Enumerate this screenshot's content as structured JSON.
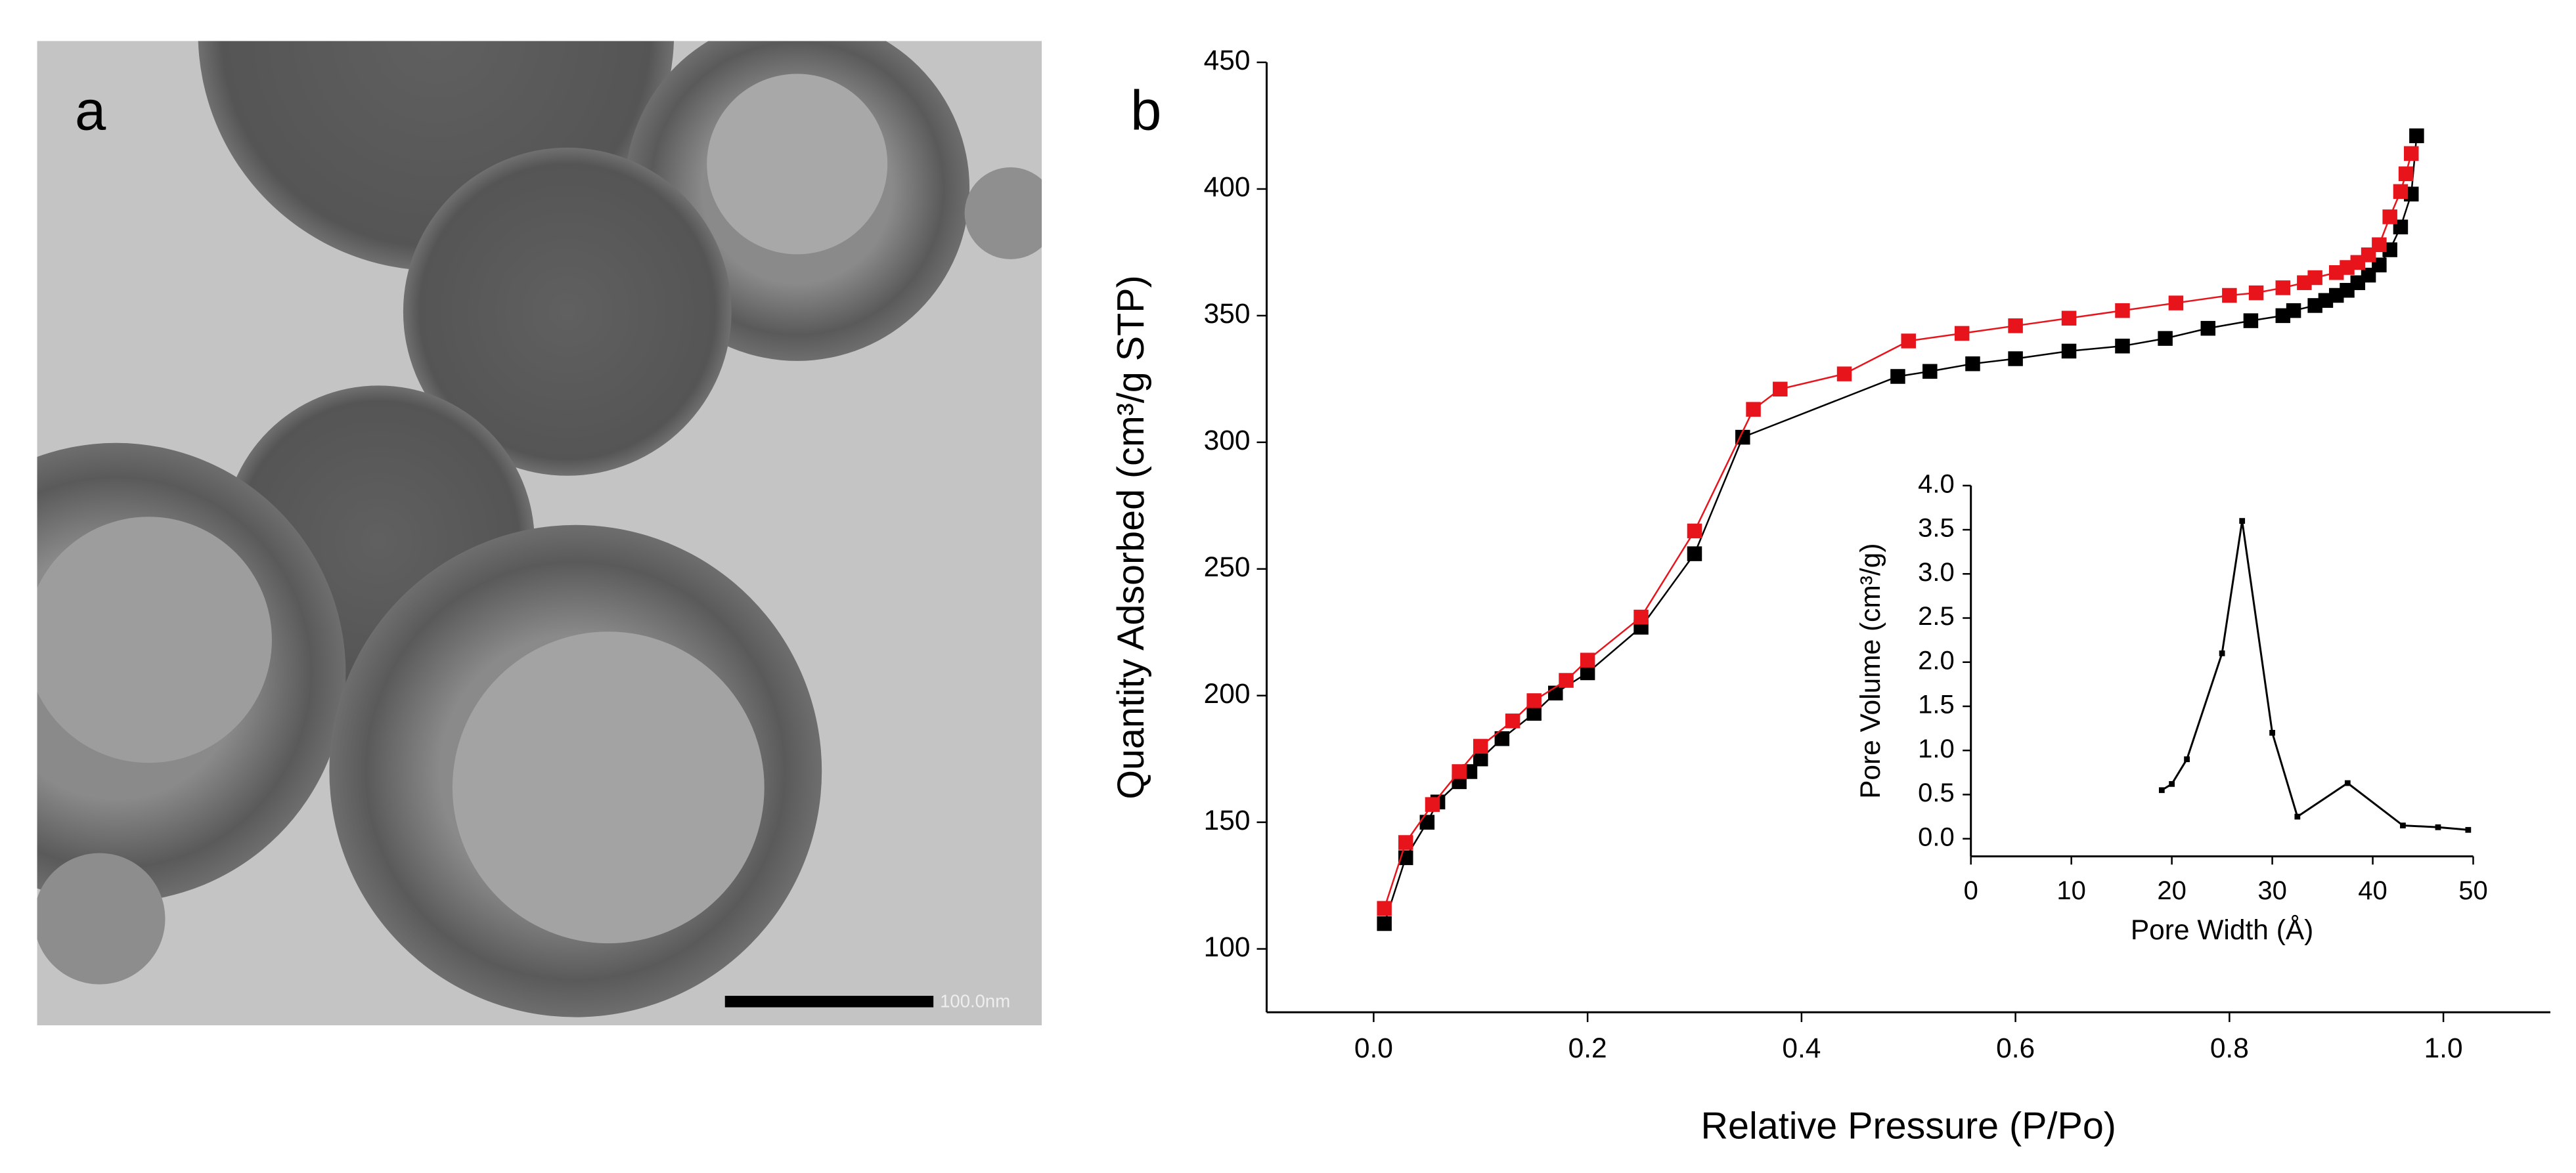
{
  "panel_a": {
    "label": "a",
    "scale_bar_label": "100.0nm"
  },
  "chart_data": [
    {
      "type": "line",
      "label": "b",
      "xlabel": "Relative Pressure (P/Po)",
      "ylabel": "Quantity Adsorbed (cm³/g STP)",
      "xlim": [
        -0.1,
        1.1
      ],
      "ylim": [
        75,
        450
      ],
      "xticks": [
        {
          "value": 0,
          "label": "0.0"
        },
        0.2,
        0.4,
        0.6,
        0.8,
        {
          "value": 1,
          "label": "1.0"
        }
      ],
      "yticks": [
        100,
        150,
        200,
        250,
        300,
        350,
        400,
        450
      ],
      "series": [
        {
          "color": "#000000",
          "x": [
            0.01,
            0.03,
            0.05,
            0.06,
            0.08,
            0.09,
            0.1,
            0.12,
            0.15,
            0.17,
            0.2,
            0.25,
            0.3,
            0.345,
            0.49,
            0.52,
            0.56,
            0.6,
            0.65,
            0.7,
            0.74,
            0.78,
            0.82,
            0.85,
            0.86,
            0.88,
            0.89,
            0.9,
            0.91,
            0.92,
            0.93,
            0.94,
            0.95,
            0.96,
            0.97,
            0.975
          ],
          "values": [
            110,
            136,
            150,
            158,
            166,
            170,
            175,
            183,
            193,
            201,
            209,
            227,
            256,
            302,
            326,
            328,
            331,
            333,
            336,
            338,
            341,
            345,
            348,
            350,
            352,
            354,
            356,
            358,
            360,
            363,
            366,
            370,
            376,
            385,
            398,
            421
          ]
        },
        {
          "color": "#e8141b",
          "x": [
            0.01,
            0.03,
            0.055,
            0.08,
            0.1,
            0.13,
            0.15,
            0.18,
            0.2,
            0.25,
            0.3,
            0.355,
            0.38,
            0.44,
            0.5,
            0.55,
            0.6,
            0.65,
            0.7,
            0.75,
            0.8,
            0.825,
            0.85,
            0.87,
            0.88,
            0.9,
            0.91,
            0.92,
            0.93,
            0.94,
            0.95,
            0.96,
            0.965,
            0.97
          ],
          "values": [
            116,
            142,
            157,
            170,
            180,
            190,
            198,
            206,
            214,
            231,
            265,
            313,
            321,
            327,
            340,
            343,
            346,
            349,
            352,
            355,
            358,
            359,
            361,
            363,
            365,
            367,
            369,
            371,
            374,
            378,
            389,
            399,
            406,
            414
          ]
        }
      ]
    },
    {
      "type": "line",
      "xlabel": "Pore Width (Å)",
      "ylabel": "Pore Volume (cm³/g)",
      "xlim": [
        0,
        50
      ],
      "ylim": [
        -0.2,
        4.0
      ],
      "xticks": [
        0,
        10,
        20,
        30,
        40,
        50
      ],
      "yticks": [
        {
          "value": 0,
          "label": "0.0"
        },
        0.5,
        {
          "value": 1,
          "label": "1.0"
        },
        1.5,
        {
          "value": 2,
          "label": "2.0"
        },
        2.5,
        {
          "value": 3,
          "label": "3.0"
        },
        3.5,
        {
          "value": 4,
          "label": "4.0"
        }
      ],
      "series": [
        {
          "color": "#000000",
          "x": [
            19,
            20,
            21.5,
            25,
            27,
            30,
            32.5,
            37.5,
            43,
            46.5,
            49.5
          ],
          "values": [
            0.55,
            0.62,
            0.9,
            2.1,
            3.6,
            1.2,
            0.25,
            0.63,
            0.15,
            0.13,
            0.1
          ]
        }
      ]
    }
  ]
}
